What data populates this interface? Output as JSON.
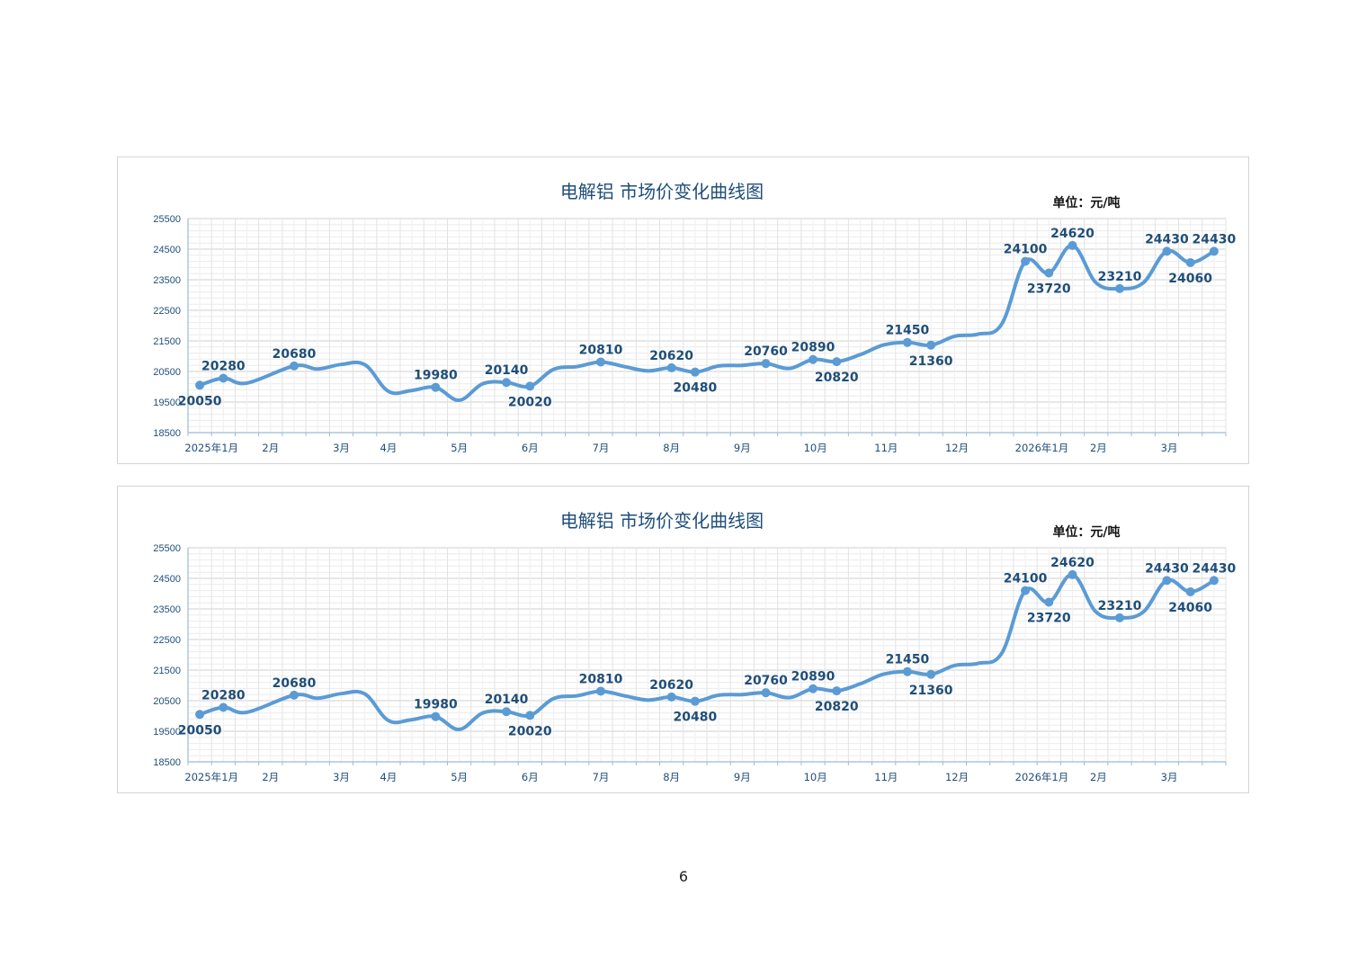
{
  "page": {
    "number": "6"
  },
  "chart_data": [
    {
      "type": "line",
      "title": "电解铝 市场价变化曲线图",
      "unit_label": "单位：元/吨",
      "ylim": [
        18500,
        25500
      ],
      "yticks": [
        "25500",
        "24500",
        "23500",
        "22500",
        "21500",
        "20500",
        "19500",
        "18500"
      ],
      "xlim": [
        0,
        44
      ],
      "x_ticks": [
        {
          "label": "2025年1月",
          "x": 1
        },
        {
          "label": "2月",
          "x": 3.5
        },
        {
          "label": "3月",
          "x": 6.5
        },
        {
          "label": "4月",
          "x": 8.5
        },
        {
          "label": "5月",
          "x": 11.5
        },
        {
          "label": "6月",
          "x": 14.5
        },
        {
          "label": "7月",
          "x": 17.5
        },
        {
          "label": "8月",
          "x": 20.5
        },
        {
          "label": "9月",
          "x": 23.5
        },
        {
          "label": "10月",
          "x": 26.6
        },
        {
          "label": "11月",
          "x": 29.6
        },
        {
          "label": "12月",
          "x": 32.6
        },
        {
          "label": "2026年1月",
          "x": 36.2
        },
        {
          "label": "2月",
          "x": 38.6
        },
        {
          "label": "3月",
          "x": 41.6
        }
      ],
      "grid": true,
      "series": [
        {
          "color": "#5b9bd5",
          "points": [
            {
              "x": 0.5,
              "y": 20050,
              "label": "20050",
              "pos": "below",
              "marker": true
            },
            {
              "x": 1.5,
              "y": 20280,
              "label": "20280",
              "pos": "above",
              "marker": true
            },
            {
              "x": 2.5,
              "y": 20120
            },
            {
              "x": 4.5,
              "y": 20680,
              "label": "20680",
              "pos": "above",
              "marker": true
            },
            {
              "x": 5.5,
              "y": 20580
            },
            {
              "x": 6.5,
              "y": 20730
            },
            {
              "x": 7.5,
              "y": 20720
            },
            {
              "x": 8.5,
              "y": 19850
            },
            {
              "x": 9.5,
              "y": 19880
            },
            {
              "x": 10.5,
              "y": 19980,
              "label": "19980",
              "pos": "above",
              "marker": true
            },
            {
              "x": 11.5,
              "y": 19560
            },
            {
              "x": 12.5,
              "y": 20100
            },
            {
              "x": 13.5,
              "y": 20140,
              "label": "20140",
              "pos": "above",
              "marker": true
            },
            {
              "x": 14.5,
              "y": 20020,
              "label": "20020",
              "pos": "below",
              "marker": true
            },
            {
              "x": 15.5,
              "y": 20570
            },
            {
              "x": 16.5,
              "y": 20660
            },
            {
              "x": 17.5,
              "y": 20810,
              "label": "20810",
              "pos": "above",
              "marker": true
            },
            {
              "x": 18.5,
              "y": 20660
            },
            {
              "x": 19.5,
              "y": 20520
            },
            {
              "x": 20.5,
              "y": 20620,
              "label": "20620",
              "pos": "above",
              "marker": true
            },
            {
              "x": 21.5,
              "y": 20480,
              "label": "20480",
              "pos": "below",
              "marker": true
            },
            {
              "x": 22.5,
              "y": 20680
            },
            {
              "x": 23.5,
              "y": 20700
            },
            {
              "x": 24.5,
              "y": 20760,
              "label": "20760",
              "pos": "above",
              "marker": true
            },
            {
              "x": 25.5,
              "y": 20600
            },
            {
              "x": 26.5,
              "y": 20890,
              "label": "20890",
              "pos": "above",
              "marker": true
            },
            {
              "x": 27.5,
              "y": 20820,
              "label": "20820",
              "pos": "below",
              "marker": true
            },
            {
              "x": 28.5,
              "y": 21050
            },
            {
              "x": 29.5,
              "y": 21370
            },
            {
              "x": 30.5,
              "y": 21450,
              "label": "21450",
              "pos": "above",
              "marker": true
            },
            {
              "x": 31.5,
              "y": 21360,
              "label": "21360",
              "pos": "below",
              "marker": true
            },
            {
              "x": 32.5,
              "y": 21650
            },
            {
              "x": 33.5,
              "y": 21720
            },
            {
              "x": 34.5,
              "y": 22050
            },
            {
              "x": 35.5,
              "y": 24100,
              "label": "24100",
              "pos": "above",
              "marker": true
            },
            {
              "x": 36.5,
              "y": 23720,
              "label": "23720",
              "pos": "below",
              "marker": true
            },
            {
              "x": 37.5,
              "y": 24620,
              "label": "24620",
              "pos": "above",
              "marker": true
            },
            {
              "x": 38.5,
              "y": 23400
            },
            {
              "x": 39.5,
              "y": 23210,
              "label": "23210",
              "pos": "above",
              "marker": true
            },
            {
              "x": 40.5,
              "y": 23400
            },
            {
              "x": 41.5,
              "y": 24430,
              "label": "24430",
              "pos": "above",
              "marker": true
            },
            {
              "x": 42.5,
              "y": 24060,
              "label": "24060",
              "pos": "below",
              "marker": true
            },
            {
              "x": 43.5,
              "y": 24430,
              "label": "24430",
              "pos": "above",
              "marker": true
            }
          ]
        }
      ]
    },
    {
      "type": "line",
      "title": "电解铝 市场价变化曲线图",
      "unit_label": "单位：元/吨",
      "ylim": [
        18500,
        25500
      ],
      "yticks": [
        "25500",
        "24500",
        "23500",
        "22500",
        "21500",
        "20500",
        "19500",
        "18500"
      ],
      "xlim": [
        0,
        44
      ],
      "x_ticks": [
        {
          "label": "2025年1月",
          "x": 1
        },
        {
          "label": "2月",
          "x": 3.5
        },
        {
          "label": "3月",
          "x": 6.5
        },
        {
          "label": "4月",
          "x": 8.5
        },
        {
          "label": "5月",
          "x": 11.5
        },
        {
          "label": "6月",
          "x": 14.5
        },
        {
          "label": "7月",
          "x": 17.5
        },
        {
          "label": "8月",
          "x": 20.5
        },
        {
          "label": "9月",
          "x": 23.5
        },
        {
          "label": "10月",
          "x": 26.6
        },
        {
          "label": "11月",
          "x": 29.6
        },
        {
          "label": "12月",
          "x": 32.6
        },
        {
          "label": "2026年1月",
          "x": 36.2
        },
        {
          "label": "2月",
          "x": 38.6
        },
        {
          "label": "3月",
          "x": 41.6
        }
      ],
      "grid": true,
      "series": [
        {
          "color": "#5b9bd5",
          "points": [
            {
              "x": 0.5,
              "y": 20050,
              "label": "20050",
              "pos": "below",
              "marker": true
            },
            {
              "x": 1.5,
              "y": 20280,
              "label": "20280",
              "pos": "above",
              "marker": true
            },
            {
              "x": 2.5,
              "y": 20120
            },
            {
              "x": 4.5,
              "y": 20680,
              "label": "20680",
              "pos": "above",
              "marker": true
            },
            {
              "x": 5.5,
              "y": 20580
            },
            {
              "x": 6.5,
              "y": 20730
            },
            {
              "x": 7.5,
              "y": 20720
            },
            {
              "x": 8.5,
              "y": 19850
            },
            {
              "x": 9.5,
              "y": 19880
            },
            {
              "x": 10.5,
              "y": 19980,
              "label": "19980",
              "pos": "above",
              "marker": true
            },
            {
              "x": 11.5,
              "y": 19560
            },
            {
              "x": 12.5,
              "y": 20100
            },
            {
              "x": 13.5,
              "y": 20140,
              "label": "20140",
              "pos": "above",
              "marker": true
            },
            {
              "x": 14.5,
              "y": 20020,
              "label": "20020",
              "pos": "below",
              "marker": true
            },
            {
              "x": 15.5,
              "y": 20570
            },
            {
              "x": 16.5,
              "y": 20660
            },
            {
              "x": 17.5,
              "y": 20810,
              "label": "20810",
              "pos": "above",
              "marker": true
            },
            {
              "x": 18.5,
              "y": 20660
            },
            {
              "x": 19.5,
              "y": 20520
            },
            {
              "x": 20.5,
              "y": 20620,
              "label": "20620",
              "pos": "above",
              "marker": true
            },
            {
              "x": 21.5,
              "y": 20480,
              "label": "20480",
              "pos": "below",
              "marker": true
            },
            {
              "x": 22.5,
              "y": 20680
            },
            {
              "x": 23.5,
              "y": 20700
            },
            {
              "x": 24.5,
              "y": 20760,
              "label": "20760",
              "pos": "above",
              "marker": true
            },
            {
              "x": 25.5,
              "y": 20600
            },
            {
              "x": 26.5,
              "y": 20890,
              "label": "20890",
              "pos": "above",
              "marker": true
            },
            {
              "x": 27.5,
              "y": 20820,
              "label": "20820",
              "pos": "below",
              "marker": true
            },
            {
              "x": 28.5,
              "y": 21050
            },
            {
              "x": 29.5,
              "y": 21370
            },
            {
              "x": 30.5,
              "y": 21450,
              "label": "21450",
              "pos": "above",
              "marker": true
            },
            {
              "x": 31.5,
              "y": 21360,
              "label": "21360",
              "pos": "below",
              "marker": true
            },
            {
              "x": 32.5,
              "y": 21650
            },
            {
              "x": 33.5,
              "y": 21720
            },
            {
              "x": 34.5,
              "y": 22050
            },
            {
              "x": 35.5,
              "y": 24100,
              "label": "24100",
              "pos": "above",
              "marker": true
            },
            {
              "x": 36.5,
              "y": 23720,
              "label": "23720",
              "pos": "below",
              "marker": true
            },
            {
              "x": 37.5,
              "y": 24620,
              "label": "24620",
              "pos": "above",
              "marker": true
            },
            {
              "x": 38.5,
              "y": 23400
            },
            {
              "x": 39.5,
              "y": 23210,
              "label": "23210",
              "pos": "above",
              "marker": true
            },
            {
              "x": 40.5,
              "y": 23400
            },
            {
              "x": 41.5,
              "y": 24430,
              "label": "24430",
              "pos": "above",
              "marker": true
            },
            {
              "x": 42.5,
              "y": 24060,
              "label": "24060",
              "pos": "below",
              "marker": true
            },
            {
              "x": 43.5,
              "y": 24430,
              "label": "24430",
              "pos": "above",
              "marker": true
            }
          ]
        }
      ]
    }
  ]
}
